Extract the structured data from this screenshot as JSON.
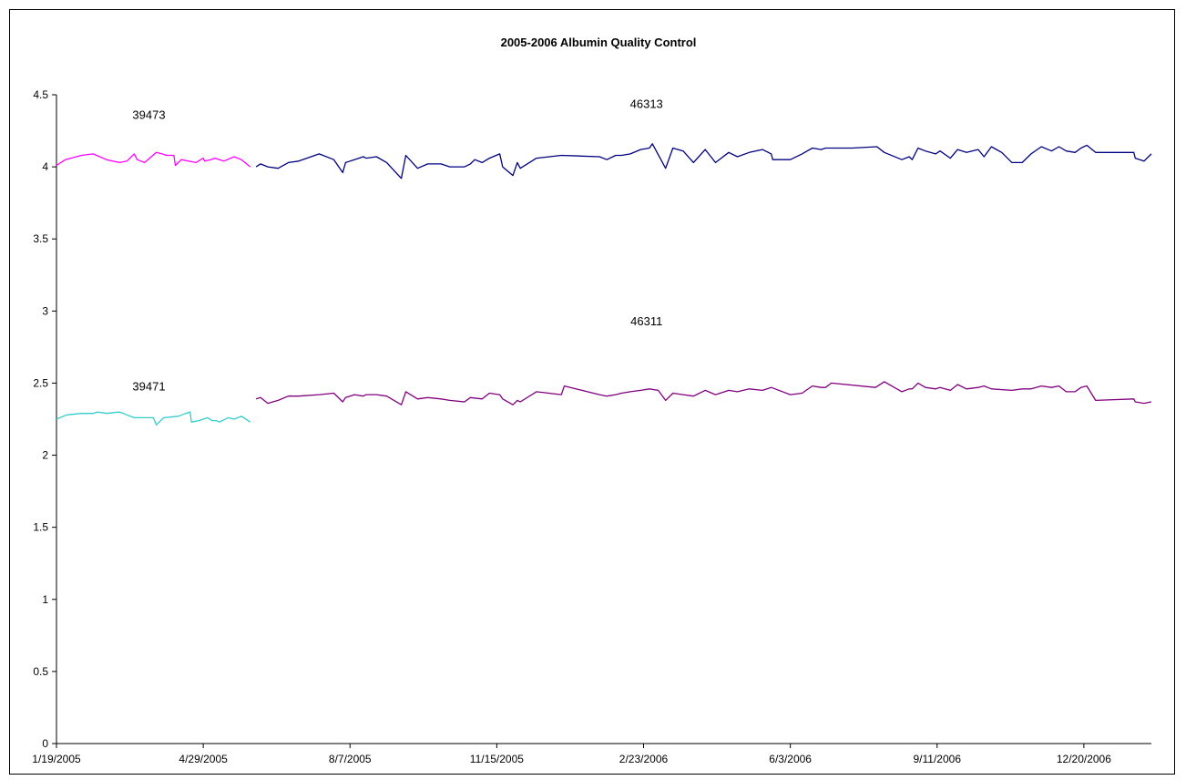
{
  "chart_data": {
    "type": "line",
    "title": "2005-2006 Albumin Quality Control",
    "xlabel": "",
    "ylabel": "",
    "x_axis_type": "date",
    "xlim": [
      "2005-01-19",
      "2007-02-04"
    ],
    "ylim": [
      0,
      4.5
    ],
    "y_ticks": [
      0,
      0.5,
      1,
      1.5,
      2,
      2.5,
      3,
      3.5,
      4,
      4.5
    ],
    "y_tick_labels": [
      "0",
      "0.5",
      "1",
      "1.5",
      "2",
      "2.5",
      "3",
      "3.5",
      "4",
      "4.5"
    ],
    "x_ticks": [
      "2005-01-19",
      "2005-04-29",
      "2005-08-07",
      "2005-11-15",
      "2006-02-23",
      "2006-06-03",
      "2006-09-11",
      "2006-12-20"
    ],
    "x_tick_labels": [
      "1/19/2005",
      "4/29/2005",
      "8/7/2005",
      "11/15/2005",
      "2/23/2006",
      "6/3/2006",
      "9/11/2006",
      "12/20/2006"
    ],
    "grid": false,
    "legend": "none",
    "series": [
      {
        "name": "39473",
        "color": "#FF00FF",
        "points": [
          [
            "2005-01-19",
            4.01
          ],
          [
            "2005-01-25",
            4.05
          ],
          [
            "2005-02-05",
            4.08
          ],
          [
            "2005-02-13",
            4.09
          ],
          [
            "2005-02-22",
            4.05
          ],
          [
            "2005-03-03",
            4.03
          ],
          [
            "2005-03-08",
            4.04
          ],
          [
            "2005-03-13",
            4.09
          ],
          [
            "2005-03-15",
            4.05
          ],
          [
            "2005-03-20",
            4.03
          ],
          [
            "2005-03-28",
            4.1
          ],
          [
            "2005-04-01",
            4.09
          ],
          [
            "2005-04-04",
            4.08
          ],
          [
            "2005-04-09",
            4.08
          ],
          [
            "2005-04-10",
            4.01
          ],
          [
            "2005-04-14",
            4.05
          ],
          [
            "2005-04-24",
            4.03
          ],
          [
            "2005-04-29",
            4.06
          ],
          [
            "2005-04-30",
            4.04
          ],
          [
            "2005-05-04",
            4.05
          ],
          [
            "2005-05-07",
            4.06
          ],
          [
            "2005-05-13",
            4.04
          ],
          [
            "2005-05-20",
            4.07
          ],
          [
            "2005-05-25",
            4.05
          ],
          [
            "2005-05-31",
            4.0
          ]
        ]
      },
      {
        "name": "39471",
        "color": "#33CCCC",
        "points": [
          [
            "2005-01-19",
            2.25
          ],
          [
            "2005-01-26",
            2.28
          ],
          [
            "2005-02-05",
            2.29
          ],
          [
            "2005-02-13",
            2.29
          ],
          [
            "2005-02-16",
            2.3
          ],
          [
            "2005-02-22",
            2.29
          ],
          [
            "2005-03-03",
            2.3
          ],
          [
            "2005-03-08",
            2.28
          ],
          [
            "2005-03-13",
            2.26
          ],
          [
            "2005-03-26",
            2.26
          ],
          [
            "2005-03-28",
            2.21
          ],
          [
            "2005-04-02",
            2.26
          ],
          [
            "2005-04-12",
            2.27
          ],
          [
            "2005-04-17",
            2.29
          ],
          [
            "2005-04-20",
            2.3
          ],
          [
            "2005-04-21",
            2.23
          ],
          [
            "2005-04-26",
            2.24
          ],
          [
            "2005-05-02",
            2.26
          ],
          [
            "2005-05-05",
            2.24
          ],
          [
            "2005-05-08",
            2.24
          ],
          [
            "2005-05-10",
            2.23
          ],
          [
            "2005-05-16",
            2.26
          ],
          [
            "2005-05-20",
            2.25
          ],
          [
            "2005-05-25",
            2.27
          ],
          [
            "2005-05-31",
            2.23
          ]
        ]
      },
      {
        "name": "46313",
        "color": "#000080",
        "points": [
          [
            "2005-06-04",
            4.0
          ],
          [
            "2005-06-07",
            4.02
          ],
          [
            "2005-06-12",
            4.0
          ],
          [
            "2005-06-19",
            3.99
          ],
          [
            "2005-06-26",
            4.03
          ],
          [
            "2005-07-03",
            4.04
          ],
          [
            "2005-07-17",
            4.09
          ],
          [
            "2005-07-27",
            4.05
          ],
          [
            "2005-08-02",
            3.96
          ],
          [
            "2005-08-04",
            4.03
          ],
          [
            "2005-08-10",
            4.05
          ],
          [
            "2005-08-16",
            4.07
          ],
          [
            "2005-08-18",
            4.06
          ],
          [
            "2005-08-25",
            4.07
          ],
          [
            "2005-09-01",
            4.03
          ],
          [
            "2005-09-11",
            3.92
          ],
          [
            "2005-09-14",
            4.08
          ],
          [
            "2005-09-22",
            3.99
          ],
          [
            "2005-09-29",
            4.02
          ],
          [
            "2005-10-08",
            4.02
          ],
          [
            "2005-10-14",
            4.0
          ],
          [
            "2005-10-24",
            4.0
          ],
          [
            "2005-10-28",
            4.02
          ],
          [
            "2005-10-31",
            4.05
          ],
          [
            "2005-11-05",
            4.03
          ],
          [
            "2005-11-10",
            4.06
          ],
          [
            "2005-11-17",
            4.09
          ],
          [
            "2005-11-19",
            4.0
          ],
          [
            "2005-11-26",
            3.94
          ],
          [
            "2005-11-29",
            4.03
          ],
          [
            "2005-12-01",
            3.99
          ],
          [
            "2005-12-12",
            4.06
          ],
          [
            "2005-12-29",
            4.08
          ],
          [
            "2006-01-24",
            4.07
          ],
          [
            "2006-01-29",
            4.05
          ],
          [
            "2006-02-04",
            4.08
          ],
          [
            "2006-02-08",
            4.08
          ],
          [
            "2006-02-14",
            4.09
          ],
          [
            "2006-02-21",
            4.12
          ],
          [
            "2006-02-27",
            4.13
          ],
          [
            "2006-03-01",
            4.16
          ],
          [
            "2006-03-10",
            3.99
          ],
          [
            "2006-03-15",
            4.13
          ],
          [
            "2006-03-22",
            4.11
          ],
          [
            "2006-03-29",
            4.03
          ],
          [
            "2006-04-06",
            4.12
          ],
          [
            "2006-04-13",
            4.03
          ],
          [
            "2006-04-22",
            4.1
          ],
          [
            "2006-04-28",
            4.07
          ],
          [
            "2006-05-06",
            4.1
          ],
          [
            "2006-05-15",
            4.12
          ],
          [
            "2006-05-21",
            4.09
          ],
          [
            "2006-05-22",
            4.05
          ],
          [
            "2006-06-03",
            4.05
          ],
          [
            "2006-06-11",
            4.09
          ],
          [
            "2006-06-18",
            4.13
          ],
          [
            "2006-06-24",
            4.12
          ],
          [
            "2006-06-27",
            4.13
          ],
          [
            "2006-07-01",
            4.13
          ],
          [
            "2006-07-15",
            4.13
          ],
          [
            "2006-08-01",
            4.14
          ],
          [
            "2006-08-06",
            4.1
          ],
          [
            "2006-08-18",
            4.05
          ],
          [
            "2006-08-23",
            4.07
          ],
          [
            "2006-08-25",
            4.05
          ],
          [
            "2006-08-29",
            4.13
          ],
          [
            "2006-09-03",
            4.11
          ],
          [
            "2006-09-10",
            4.09
          ],
          [
            "2006-09-13",
            4.11
          ],
          [
            "2006-09-20",
            4.06
          ],
          [
            "2006-09-25",
            4.12
          ],
          [
            "2006-10-01",
            4.1
          ],
          [
            "2006-10-09",
            4.12
          ],
          [
            "2006-10-13",
            4.07
          ],
          [
            "2006-10-18",
            4.14
          ],
          [
            "2006-10-25",
            4.1
          ],
          [
            "2006-11-01",
            4.03
          ],
          [
            "2006-11-08",
            4.03
          ],
          [
            "2006-11-14",
            4.09
          ],
          [
            "2006-11-21",
            4.14
          ],
          [
            "2006-11-28",
            4.11
          ],
          [
            "2006-12-03",
            4.14
          ],
          [
            "2006-12-08",
            4.11
          ],
          [
            "2006-12-14",
            4.1
          ],
          [
            "2006-12-18",
            4.13
          ],
          [
            "2006-12-22",
            4.15
          ],
          [
            "2006-12-28",
            4.1
          ],
          [
            "2007-01-23",
            4.1
          ],
          [
            "2007-01-24",
            4.06
          ],
          [
            "2007-01-30",
            4.04
          ],
          [
            "2007-02-04",
            4.09
          ]
        ]
      },
      {
        "name": "46311",
        "color": "#800080",
        "points": [
          [
            "2005-06-04",
            2.39
          ],
          [
            "2005-06-07",
            2.4
          ],
          [
            "2005-06-12",
            2.36
          ],
          [
            "2005-06-19",
            2.38
          ],
          [
            "2005-06-26",
            2.41
          ],
          [
            "2005-07-03",
            2.41
          ],
          [
            "2005-07-17",
            2.42
          ],
          [
            "2005-07-27",
            2.43
          ],
          [
            "2005-08-02",
            2.37
          ],
          [
            "2005-08-04",
            2.4
          ],
          [
            "2005-08-10",
            2.42
          ],
          [
            "2005-08-16",
            2.41
          ],
          [
            "2005-08-18",
            2.42
          ],
          [
            "2005-08-25",
            2.42
          ],
          [
            "2005-09-01",
            2.41
          ],
          [
            "2005-09-11",
            2.35
          ],
          [
            "2005-09-14",
            2.44
          ],
          [
            "2005-09-22",
            2.39
          ],
          [
            "2005-09-29",
            2.4
          ],
          [
            "2005-10-08",
            2.39
          ],
          [
            "2005-10-14",
            2.38
          ],
          [
            "2005-10-24",
            2.37
          ],
          [
            "2005-10-28",
            2.4
          ],
          [
            "2005-11-05",
            2.39
          ],
          [
            "2005-11-10",
            2.43
          ],
          [
            "2005-11-17",
            2.42
          ],
          [
            "2005-11-19",
            2.39
          ],
          [
            "2005-11-26",
            2.35
          ],
          [
            "2005-11-29",
            2.38
          ],
          [
            "2005-12-01",
            2.37
          ],
          [
            "2005-12-12",
            2.44
          ],
          [
            "2005-12-29",
            2.42
          ],
          [
            "2005-12-31",
            2.48
          ],
          [
            "2006-01-24",
            2.42
          ],
          [
            "2006-01-29",
            2.41
          ],
          [
            "2006-02-04",
            2.42
          ],
          [
            "2006-02-08",
            2.43
          ],
          [
            "2006-02-14",
            2.44
          ],
          [
            "2006-02-21",
            2.45
          ],
          [
            "2006-02-27",
            2.46
          ],
          [
            "2006-03-05",
            2.45
          ],
          [
            "2006-03-10",
            2.38
          ],
          [
            "2006-03-15",
            2.43
          ],
          [
            "2006-03-22",
            2.42
          ],
          [
            "2006-03-29",
            2.41
          ],
          [
            "2006-04-06",
            2.45
          ],
          [
            "2006-04-13",
            2.42
          ],
          [
            "2006-04-22",
            2.45
          ],
          [
            "2006-04-28",
            2.44
          ],
          [
            "2006-05-06",
            2.46
          ],
          [
            "2006-05-15",
            2.45
          ],
          [
            "2006-05-21",
            2.47
          ],
          [
            "2006-06-03",
            2.42
          ],
          [
            "2006-06-11",
            2.43
          ],
          [
            "2006-06-18",
            2.48
          ],
          [
            "2006-06-24",
            2.47
          ],
          [
            "2006-06-27",
            2.47
          ],
          [
            "2006-07-01",
            2.5
          ],
          [
            "2006-07-31",
            2.47
          ],
          [
            "2006-08-06",
            2.51
          ],
          [
            "2006-08-18",
            2.44
          ],
          [
            "2006-08-23",
            2.46
          ],
          [
            "2006-08-25",
            2.46
          ],
          [
            "2006-08-29",
            2.5
          ],
          [
            "2006-09-03",
            2.47
          ],
          [
            "2006-09-10",
            2.46
          ],
          [
            "2006-09-13",
            2.47
          ],
          [
            "2006-09-20",
            2.45
          ],
          [
            "2006-09-25",
            2.49
          ],
          [
            "2006-10-01",
            2.46
          ],
          [
            "2006-10-09",
            2.47
          ],
          [
            "2006-10-13",
            2.48
          ],
          [
            "2006-10-18",
            2.46
          ],
          [
            "2006-11-01",
            2.45
          ],
          [
            "2006-11-08",
            2.46
          ],
          [
            "2006-11-14",
            2.46
          ],
          [
            "2006-11-21",
            2.48
          ],
          [
            "2006-11-28",
            2.47
          ],
          [
            "2006-12-03",
            2.48
          ],
          [
            "2006-12-08",
            2.44
          ],
          [
            "2006-12-14",
            2.44
          ],
          [
            "2006-12-18",
            2.47
          ],
          [
            "2006-12-22",
            2.48
          ],
          [
            "2006-12-28",
            2.38
          ],
          [
            "2007-01-23",
            2.39
          ],
          [
            "2007-01-24",
            2.37
          ],
          [
            "2007-01-30",
            2.36
          ],
          [
            "2007-02-04",
            2.37
          ]
        ]
      }
    ]
  }
}
